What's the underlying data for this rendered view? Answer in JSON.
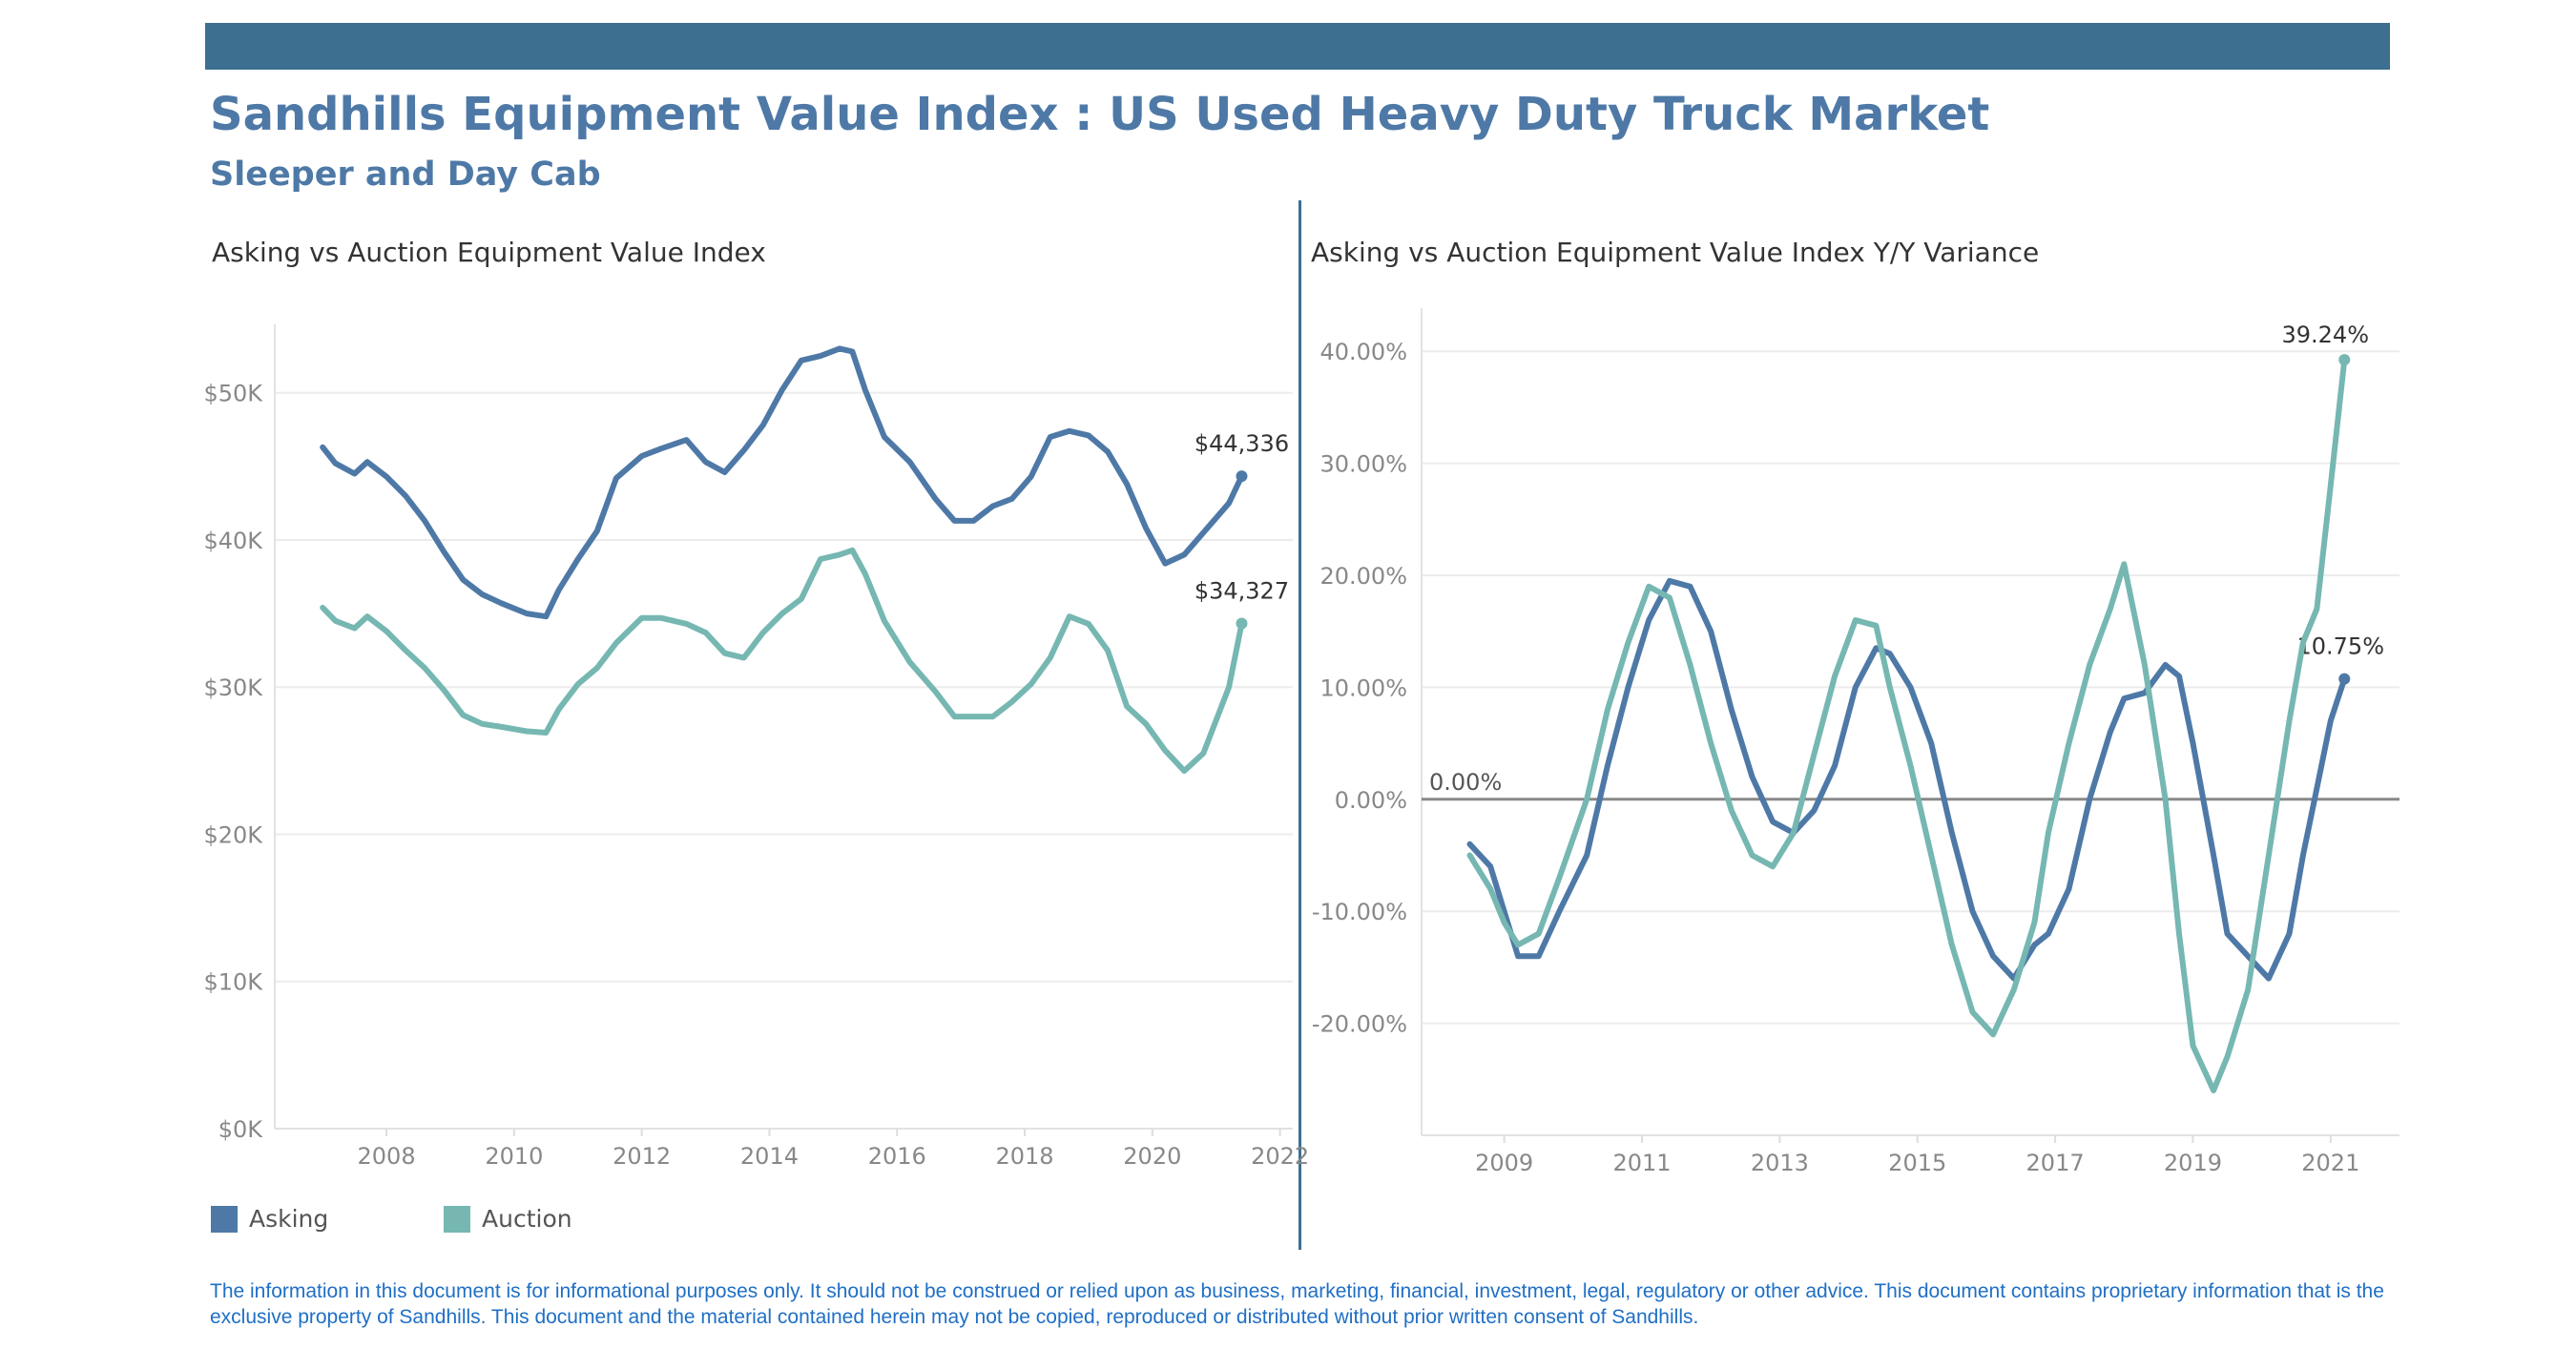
{
  "header": {
    "bar_color": "#3d6f91",
    "title": "Sandhills Equipment Value Index : US Used Heavy Duty Truck Market",
    "subtitle": "Sleeper and Day Cab"
  },
  "legend": {
    "asking_label": "Asking",
    "auction_label": "Auction"
  },
  "colors": {
    "asking": "#4e79a7",
    "auction": "#76b7b2",
    "divider": "#3d6f91",
    "zero_line": "#888888",
    "grid": "#ececec",
    "tick_text": "#888888"
  },
  "disclaimer": "The information in this document is for informational purposes only.  It should not be construed or relied upon as business, marketing, financial, investment, legal, regulatory or other advice. This document contains proprietary information that is the exclusive property of Sandhills. This document and the material contained herein may not be copied, reproduced or distributed without prior written consent of Sandhills.",
  "chart_data": [
    {
      "type": "line",
      "title": "Asking vs Auction Equipment Value Index",
      "xlabel": "",
      "ylabel": "",
      "xlim": [
        2006.25,
        2022.2
      ],
      "ylim": [
        0,
        54000
      ],
      "x_ticks": [
        2008,
        2010,
        2012,
        2014,
        2016,
        2018,
        2020,
        2022
      ],
      "x_tick_labels": [
        "2008",
        "2010",
        "2012",
        "2014",
        "2016",
        "2018",
        "2020",
        "2022"
      ],
      "y_ticks": [
        0,
        10000,
        20000,
        30000,
        40000,
        50000
      ],
      "y_tick_labels": [
        "$0K",
        "$10K",
        "$20K",
        "$30K",
        "$40K",
        "$50K"
      ],
      "grid": "horizontal",
      "legend": "bottom-left",
      "end_labels": [
        "$44,336",
        "$34,327"
      ],
      "series": [
        {
          "name": "Asking",
          "x": [
            2007.0,
            2007.2,
            2007.5,
            2007.7,
            2008.0,
            2008.3,
            2008.6,
            2008.9,
            2009.2,
            2009.5,
            2009.8,
            2010.2,
            2010.5,
            2010.7,
            2011.0,
            2011.3,
            2011.6,
            2012.0,
            2012.3,
            2012.7,
            2013.0,
            2013.3,
            2013.6,
            2013.9,
            2014.2,
            2014.5,
            2014.8,
            2015.1,
            2015.3,
            2015.5,
            2015.8,
            2016.2,
            2016.6,
            2016.9,
            2017.2,
            2017.5,
            2017.8,
            2018.1,
            2018.4,
            2018.7,
            2019.0,
            2019.3,
            2019.6,
            2019.9,
            2020.2,
            2020.5,
            2020.8,
            2021.2,
            2021.4
          ],
          "values": [
            46300,
            45200,
            44500,
            45300,
            44300,
            43000,
            41300,
            39200,
            37300,
            36300,
            35700,
            35000,
            34800,
            36600,
            38700,
            40600,
            44200,
            45700,
            46200,
            46800,
            45300,
            44600,
            46100,
            47800,
            50200,
            52200,
            52500,
            53000,
            52800,
            50200,
            47000,
            45300,
            42800,
            41300,
            41300,
            42300,
            42800,
            44300,
            47000,
            47400,
            47100,
            46000,
            43800,
            40800,
            38400,
            39000,
            40500,
            42500,
            44336
          ]
        },
        {
          "name": "Auction",
          "x": [
            2007.0,
            2007.2,
            2007.5,
            2007.7,
            2008.0,
            2008.3,
            2008.6,
            2008.9,
            2009.2,
            2009.5,
            2009.8,
            2010.2,
            2010.5,
            2010.7,
            2011.0,
            2011.3,
            2011.6,
            2012.0,
            2012.3,
            2012.7,
            2013.0,
            2013.3,
            2013.6,
            2013.9,
            2014.2,
            2014.5,
            2014.8,
            2015.1,
            2015.3,
            2015.5,
            2015.8,
            2016.2,
            2016.6,
            2016.9,
            2017.2,
            2017.5,
            2017.8,
            2018.1,
            2018.4,
            2018.7,
            2019.0,
            2019.3,
            2019.6,
            2019.9,
            2020.2,
            2020.5,
            2020.8,
            2021.2,
            2021.4
          ],
          "values": [
            35400,
            34500,
            34000,
            34800,
            33800,
            32500,
            31300,
            29800,
            28100,
            27500,
            27300,
            27000,
            26900,
            28500,
            30200,
            31300,
            33000,
            34700,
            34700,
            34300,
            33700,
            32300,
            32000,
            33700,
            35000,
            36000,
            38700,
            39000,
            39300,
            37700,
            34500,
            31700,
            29700,
            28000,
            28000,
            28000,
            29000,
            30200,
            32000,
            34800,
            34300,
            32500,
            28700,
            27500,
            25700,
            24300,
            25500,
            30000,
            34327
          ]
        }
      ]
    },
    {
      "type": "line",
      "title": "Asking vs Auction Equipment Value Index Y/Y Variance",
      "xlabel": "",
      "ylabel": "",
      "xlim": [
        2007.8,
        2022.0
      ],
      "ylim": [
        -30,
        43
      ],
      "x_ticks": [
        2009,
        2011,
        2013,
        2015,
        2017,
        2019,
        2021
      ],
      "x_tick_labels": [
        "2009",
        "2011",
        "2013",
        "2015",
        "2017",
        "2019",
        "2021"
      ],
      "y_ticks": [
        -20,
        -10,
        0,
        10,
        20,
        30,
        40
      ],
      "y_tick_labels": [
        "-20.00%",
        "-10.00%",
        "0.00%",
        "10.00%",
        "20.00%",
        "30.00%",
        "40.00%"
      ],
      "grid": "horizontal",
      "reference_line": {
        "value": 0,
        "label": "0.00%"
      },
      "end_labels": [
        "10.75%",
        "39.24%"
      ],
      "series": [
        {
          "name": "Asking",
          "x": [
            2008.5,
            2008.8,
            2009.0,
            2009.2,
            2009.5,
            2009.8,
            2010.2,
            2010.5,
            2010.8,
            2011.1,
            2011.4,
            2011.7,
            2012.0,
            2012.3,
            2012.6,
            2012.9,
            2013.2,
            2013.5,
            2013.8,
            2014.1,
            2014.4,
            2014.6,
            2014.9,
            2015.2,
            2015.5,
            2015.8,
            2016.1,
            2016.4,
            2016.7,
            2016.9,
            2017.2,
            2017.5,
            2017.8,
            2018.0,
            2018.3,
            2018.6,
            2018.8,
            2019.0,
            2019.3,
            2019.5,
            2019.8,
            2020.1,
            2020.4,
            2020.6,
            2020.8,
            2021.0,
            2021.2
          ],
          "values": [
            -4,
            -6,
            -10,
            -14,
            -14,
            -10,
            -5,
            3,
            10,
            16,
            19.5,
            19,
            15,
            8,
            2,
            -2,
            -3,
            -1,
            3,
            10,
            13.5,
            13,
            10,
            5,
            -3,
            -10,
            -14,
            -16,
            -13,
            -12,
            -8,
            0,
            6,
            9,
            9.5,
            12,
            11,
            5,
            -5,
            -12,
            -14,
            -16,
            -12,
            -5,
            1,
            7,
            10.75
          ]
        },
        {
          "name": "Auction",
          "x": [
            2008.5,
            2008.8,
            2009.0,
            2009.2,
            2009.5,
            2009.8,
            2010.2,
            2010.5,
            2010.8,
            2011.1,
            2011.4,
            2011.7,
            2012.0,
            2012.3,
            2012.6,
            2012.9,
            2013.2,
            2013.5,
            2013.8,
            2014.1,
            2014.4,
            2014.6,
            2014.9,
            2015.2,
            2015.5,
            2015.8,
            2016.1,
            2016.4,
            2016.7,
            2016.9,
            2017.2,
            2017.5,
            2017.8,
            2018.0,
            2018.3,
            2018.6,
            2018.8,
            2019.0,
            2019.3,
            2019.5,
            2019.8,
            2020.1,
            2020.4,
            2020.6,
            2020.8,
            2021.0,
            2021.2
          ],
          "values": [
            -5,
            -8,
            -11,
            -13,
            -12,
            -7,
            0,
            8,
            14,
            19,
            18,
            12,
            5,
            -1,
            -5,
            -6,
            -3,
            4,
            11,
            16,
            15.5,
            10,
            3,
            -5,
            -13,
            -19,
            -21,
            -17,
            -11,
            -3,
            5,
            12,
            17,
            21,
            12,
            0,
            -12,
            -22,
            -26,
            -23,
            -17,
            -5,
            7,
            14,
            17,
            28,
            39.24
          ]
        }
      ]
    }
  ]
}
